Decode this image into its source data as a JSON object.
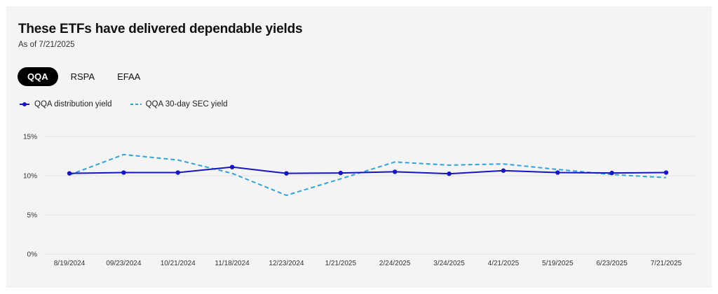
{
  "header": {
    "title": "These ETFs have delivered dependable yields",
    "subtitle": "As of 7/21/2025"
  },
  "tabs": [
    {
      "label": "QQA",
      "active": true
    },
    {
      "label": "RSPA",
      "active": false
    },
    {
      "label": "EFAA",
      "active": false
    }
  ],
  "colors": {
    "distribution": "#1414c8",
    "sec": "#2aa3e8",
    "grid": "#e2e2e2",
    "axis_text": "#333333"
  },
  "chart_data": {
    "type": "line",
    "categories": [
      "8/19/2024",
      "09/23/2024",
      "10/21/2024",
      "11/18/2024",
      "12/23/2024",
      "1/21/2025",
      "2/24/2025",
      "3/24/2025",
      "4/21/2025",
      "5/19/2025",
      "6/23/2025",
      "7/21/2025"
    ],
    "series": [
      {
        "name": "QQA distribution yield",
        "style": "solid-with-markers",
        "values": [
          10.3,
          10.4,
          10.4,
          11.1,
          10.3,
          10.35,
          10.5,
          10.25,
          10.65,
          10.4,
          10.35,
          10.4
        ]
      },
      {
        "name": "QQA 30-day SEC yield",
        "style": "dashed",
        "values": [
          10.1,
          12.7,
          12.0,
          10.3,
          7.5,
          9.6,
          11.75,
          11.35,
          11.5,
          10.8,
          10.15,
          9.75
        ]
      }
    ],
    "y_ticks": [
      "0%",
      "5%",
      "10%",
      "15%"
    ],
    "ylim": [
      0,
      15
    ],
    "grid": "horizontal",
    "legend": "top-left"
  }
}
